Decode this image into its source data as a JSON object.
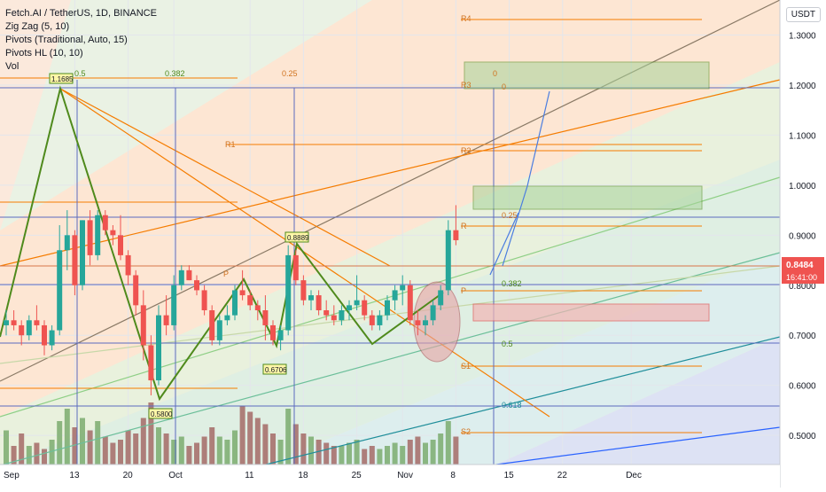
{
  "header": {
    "symbol_line": "Fetch.AI / TetherUS, 1D, BINANCE",
    "indicators": [
      "Zig Zag (5, 10)",
      "Pivots (Traditional, Auto, 15)",
      "Pivots HL (10, 10)",
      "Vol"
    ],
    "currency_badge": "USDT"
  },
  "price_axis": {
    "ticks": [
      "1.3000",
      "1.2000",
      "1.1000",
      "1.0000",
      "0.9000",
      "0.8000",
      "0.7000",
      "0.6000",
      "0.5000"
    ],
    "tick_values": [
      1.3,
      1.2,
      1.1,
      1.0,
      0.9,
      0.8,
      0.7,
      0.6,
      0.5
    ],
    "last_price": "0.8484",
    "countdown": "16:41:00"
  },
  "time_axis": {
    "labels": [
      "Sep",
      "13",
      "20",
      "Oct",
      "11",
      "18",
      "25",
      "Nov",
      "8",
      "15",
      "22",
      "Dec"
    ],
    "day_index": [
      -5,
      9,
      16,
      22,
      32,
      39,
      46,
      52,
      59,
      66,
      73,
      82
    ]
  },
  "colors": {
    "up": "#26a69a",
    "down": "#ef5350",
    "zigzag": "#4f8a1c",
    "pivot": "#f57c00",
    "fib_blue": "#2962ff",
    "vol_up": "#7bab6e",
    "vol_down": "#a56a66"
  },
  "annotations": {
    "zigzag_labels": [
      "1.1685",
      "0.5800",
      "0.8889",
      "0.6706"
    ],
    "pivot_labels": [
      "R4",
      "R3",
      "R2",
      "R1",
      "P",
      "S1",
      "S2",
      "R",
      "P",
      "S1"
    ],
    "fib_labels": [
      "0.5",
      "0.382",
      "0.25",
      "0",
      "0.25",
      "0.382",
      "0.5",
      "0.618",
      "0"
    ]
  },
  "chart_data": {
    "type": "candlestick",
    "title": "Fetch.AI / TetherUS, 1D, BINANCE",
    "ylim": [
      0.44,
      1.37
    ],
    "candles": [
      [
        0.72,
        0.75,
        0.7,
        0.73
      ],
      [
        0.73,
        0.75,
        0.71,
        0.72
      ],
      [
        0.72,
        0.73,
        0.68,
        0.7
      ],
      [
        0.7,
        0.74,
        0.69,
        0.73
      ],
      [
        0.73,
        0.76,
        0.71,
        0.72
      ],
      [
        0.72,
        0.73,
        0.66,
        0.68
      ],
      [
        0.68,
        0.72,
        0.67,
        0.71
      ],
      [
        0.71,
        0.92,
        0.7,
        0.87
      ],
      [
        0.87,
        0.95,
        0.83,
        0.9
      ],
      [
        0.9,
        0.91,
        0.78,
        0.8
      ],
      [
        0.8,
        0.93,
        0.79,
        0.93
      ],
      [
        0.93,
        0.95,
        0.84,
        0.86
      ],
      [
        0.86,
        0.95,
        0.85,
        0.94
      ],
      [
        0.94,
        0.95,
        0.9,
        0.91
      ],
      [
        0.91,
        0.92,
        0.88,
        0.9
      ],
      [
        0.9,
        0.94,
        0.85,
        0.86
      ],
      [
        0.86,
        0.87,
        0.8,
        0.82
      ],
      [
        0.82,
        0.83,
        0.74,
        0.76
      ],
      [
        0.76,
        0.79,
        0.65,
        0.68
      ],
      [
        0.68,
        0.7,
        0.58,
        0.61
      ],
      [
        0.61,
        0.76,
        0.6,
        0.74
      ],
      [
        0.74,
        0.78,
        0.7,
        0.72
      ],
      [
        0.72,
        0.82,
        0.71,
        0.8
      ],
      [
        0.8,
        0.84,
        0.79,
        0.83
      ],
      [
        0.83,
        0.84,
        0.81,
        0.81
      ],
      [
        0.81,
        0.82,
        0.78,
        0.79
      ],
      [
        0.79,
        0.8,
        0.74,
        0.75
      ],
      [
        0.75,
        0.76,
        0.68,
        0.69
      ],
      [
        0.69,
        0.74,
        0.68,
        0.73
      ],
      [
        0.73,
        0.76,
        0.72,
        0.74
      ],
      [
        0.74,
        0.8,
        0.73,
        0.79
      ],
      [
        0.79,
        0.83,
        0.77,
        0.78
      ],
      [
        0.78,
        0.79,
        0.75,
        0.76
      ],
      [
        0.76,
        0.77,
        0.73,
        0.75
      ],
      [
        0.75,
        0.78,
        0.69,
        0.72
      ],
      [
        0.72,
        0.73,
        0.68,
        0.69
      ],
      [
        0.69,
        0.72,
        0.67,
        0.71
      ],
      [
        0.71,
        0.88,
        0.7,
        0.86
      ],
      [
        0.86,
        0.87,
        0.8,
        0.81
      ],
      [
        0.81,
        0.82,
        0.76,
        0.77
      ],
      [
        0.77,
        0.79,
        0.75,
        0.78
      ],
      [
        0.78,
        0.79,
        0.74,
        0.75
      ],
      [
        0.75,
        0.77,
        0.73,
        0.74
      ],
      [
        0.74,
        0.76,
        0.72,
        0.73
      ],
      [
        0.73,
        0.76,
        0.72,
        0.75
      ],
      [
        0.75,
        0.77,
        0.73,
        0.76
      ],
      [
        0.76,
        0.82,
        0.75,
        0.77
      ],
      [
        0.77,
        0.78,
        0.73,
        0.74
      ],
      [
        0.74,
        0.75,
        0.71,
        0.72
      ],
      [
        0.72,
        0.75,
        0.71,
        0.74
      ],
      [
        0.74,
        0.78,
        0.73,
        0.77
      ],
      [
        0.77,
        0.8,
        0.75,
        0.79
      ],
      [
        0.79,
        0.82,
        0.76,
        0.8
      ],
      [
        0.8,
        0.81,
        0.72,
        0.73
      ],
      [
        0.73,
        0.75,
        0.7,
        0.72
      ],
      [
        0.72,
        0.74,
        0.7,
        0.73
      ],
      [
        0.73,
        0.77,
        0.72,
        0.76
      ],
      [
        0.76,
        0.8,
        0.75,
        0.79
      ],
      [
        0.79,
        0.93,
        0.78,
        0.91
      ],
      [
        0.91,
        0.96,
        0.88,
        0.89
      ]
    ],
    "volume_heights": [
      0.55,
      0.3,
      0.5,
      0.3,
      0.35,
      0.25,
      0.4,
      0.7,
      0.9,
      0.6,
      0.75,
      0.55,
      0.7,
      0.45,
      0.35,
      0.4,
      0.55,
      0.5,
      0.75,
      1.0,
      0.6,
      0.5,
      0.4,
      0.45,
      0.3,
      0.35,
      0.45,
      0.6,
      0.45,
      0.4,
      0.55,
      0.95,
      0.85,
      0.75,
      0.65,
      0.5,
      0.4,
      0.9,
      0.65,
      0.5,
      0.45,
      0.4,
      0.35,
      0.3,
      0.3,
      0.35,
      0.4,
      0.25,
      0.3,
      0.25,
      0.3,
      0.35,
      0.3,
      0.4,
      0.45,
      0.35,
      0.4,
      0.5,
      0.7,
      0.45
    ]
  }
}
